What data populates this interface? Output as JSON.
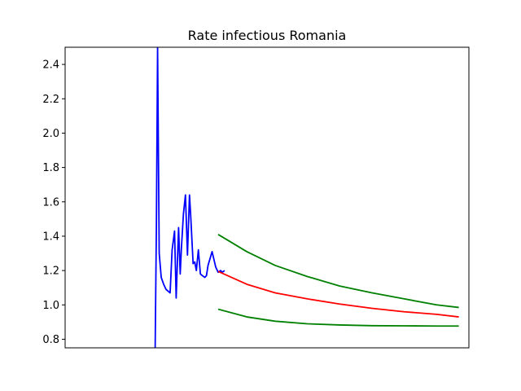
{
  "chart_data": {
    "type": "line",
    "title": "Rate infectious Romania",
    "xlabel": "",
    "ylabel": "",
    "x_ticks_visible": false,
    "xlim": [
      0,
      100
    ],
    "ylim": [
      0.75,
      2.5
    ],
    "y_ticks": [
      0.8,
      1.0,
      1.2,
      1.4,
      1.6,
      1.8,
      2.0,
      2.2,
      2.4
    ],
    "y_tick_labels": [
      "0.8",
      "1.0",
      "1.2",
      "1.4",
      "1.6",
      "1.8",
      "2.0",
      "2.2",
      "2.4"
    ],
    "grid": false,
    "legend": "none",
    "series": [
      {
        "color": "#0000ff",
        "x": [
          22.3,
          22.6,
          22.9,
          23.3,
          23.8,
          24.4,
          25.0,
          25.5,
          26.0,
          26.5,
          27.1,
          27.5,
          28.1,
          28.5,
          28.8,
          29.3,
          29.8,
          30.3,
          30.8,
          31.1,
          31.7,
          32.1,
          32.5,
          33.0,
          33.5,
          34.0,
          34.6,
          35.0,
          35.4,
          36.4,
          37.3,
          37.9,
          38.5,
          38.9,
          39.5
        ],
        "y": [
          0.75,
          1.45,
          2.5,
          1.3,
          1.16,
          1.12,
          1.09,
          1.08,
          1.07,
          1.32,
          1.43,
          1.04,
          1.45,
          1.18,
          1.33,
          1.53,
          1.64,
          1.29,
          1.64,
          1.52,
          1.24,
          1.25,
          1.2,
          1.32,
          1.18,
          1.17,
          1.16,
          1.17,
          1.23,
          1.31,
          1.22,
          1.19,
          1.2,
          1.19,
          1.2
        ]
      },
      {
        "color": "#ff0000",
        "x": [
          37.9,
          45,
          52,
          60,
          68,
          76,
          84,
          92,
          97.5
        ],
        "y": [
          1.195,
          1.12,
          1.07,
          1.035,
          1.005,
          0.98,
          0.96,
          0.945,
          0.93
        ]
      },
      {
        "color": "#008000",
        "x": [
          37.9,
          45,
          52,
          60,
          68,
          76,
          84,
          92,
          97.5
        ],
        "y": [
          1.41,
          1.31,
          1.23,
          1.165,
          1.11,
          1.07,
          1.035,
          1.0,
          0.985
        ]
      },
      {
        "color": "#008000",
        "x": [
          37.9,
          45,
          52,
          60,
          68,
          76,
          84,
          92,
          97.5
        ],
        "y": [
          0.975,
          0.93,
          0.905,
          0.89,
          0.883,
          0.879,
          0.878,
          0.877,
          0.877
        ]
      }
    ]
  }
}
